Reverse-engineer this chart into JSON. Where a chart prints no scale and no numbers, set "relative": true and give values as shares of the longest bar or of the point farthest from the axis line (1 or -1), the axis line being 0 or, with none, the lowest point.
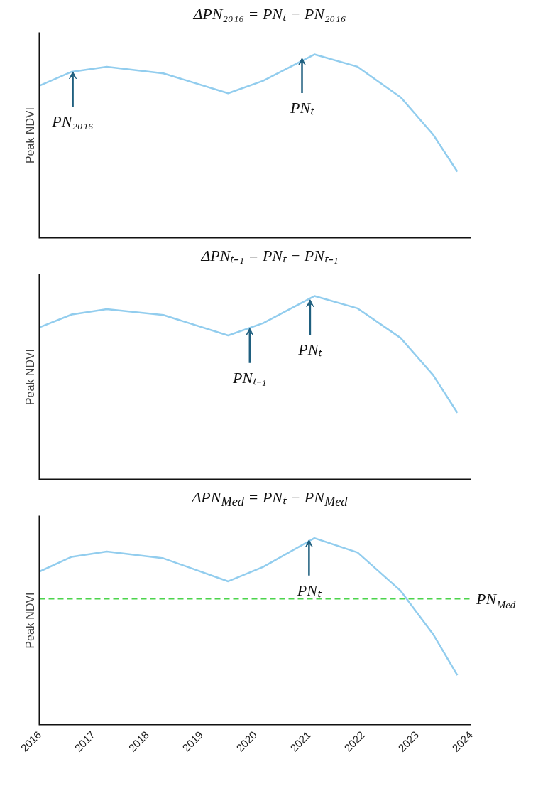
{
  "chart_data": [
    {
      "type": "line",
      "title": "ΔPN₂₀₁₆ = PNₜ − PN₂₀₁₆",
      "ylabel": "Peak NDVI",
      "relative": true,
      "xlim": [
        2016,
        2024
      ],
      "tick_labels": false,
      "grid": false,
      "marker": "none",
      "line_style": "solid",
      "x": [
        2016,
        2016.6,
        2017.25,
        2018.3,
        2019.5,
        2020.15,
        2021.1,
        2021.9,
        2022.7,
        2023.3,
        2023.75
      ],
      "series": [
        {
          "color": "#92cdee",
          "values": [
            0.83,
            0.906,
            0.933,
            0.897,
            0.789,
            0.857,
            1,
            0.933,
            0.767,
            0.565,
            0.363
          ]
        }
      ],
      "annotations": [
        {
          "text": "PN₂₀₁₆",
          "x": 2016.62,
          "y": 0.906
        },
        {
          "text": "PNₜ",
          "x": 2020.87,
          "y": 0.98
        }
      ]
    },
    {
      "type": "line",
      "title": "ΔPNₜ₋₁ = PNₜ − PNₜ₋₁",
      "ylabel": "Peak NDVI",
      "relative": true,
      "xlim": [
        2016,
        2024
      ],
      "tick_labels": false,
      "grid": false,
      "marker": "none",
      "line_style": "solid",
      "x": [
        2016,
        2016.6,
        2017.25,
        2018.3,
        2019.5,
        2020.15,
        2021.1,
        2021.9,
        2022.7,
        2023.3,
        2023.75
      ],
      "series": [
        {
          "color": "#92cdee",
          "values": [
            0.83,
            0.9,
            0.929,
            0.897,
            0.786,
            0.853,
            1,
            0.933,
            0.772,
            0.571,
            0.366
          ]
        }
      ],
      "annotations": [
        {
          "text": "PNₜ₋₁",
          "x": 2019.9,
          "y": 0.826
        },
        {
          "text": "PNₜ",
          "x": 2021.02,
          "y": 0.98
        }
      ]
    },
    {
      "type": "line",
      "title": "ΔPN$_{Med}$ = PNₜ − PN$_{Med}$",
      "ylabel": "Peak NDVI",
      "relative": true,
      "xlim": [
        2016,
        2024
      ],
      "xticks": [
        2016,
        2017,
        2018,
        2019,
        2020,
        2021,
        2022,
        2023,
        2024
      ],
      "tick_labels": "x",
      "grid": false,
      "marker": "none",
      "line_style": "solid",
      "x": [
        2016,
        2016.6,
        2017.25,
        2018.3,
        2019.5,
        2020.15,
        2021.1,
        2021.9,
        2022.7,
        2023.3,
        2023.75
      ],
      "series": [
        {
          "color": "#92cdee",
          "values": [
            0.821,
            0.9,
            0.928,
            0.892,
            0.769,
            0.846,
            1,
            0.923,
            0.718,
            0.487,
            0.267
          ]
        }
      ],
      "ref_lines": [
        {
          "axis": "y",
          "value": 0.677,
          "label": "PN$_{Med}$",
          "color": "#4cd44c",
          "line_style": "dashed"
        }
      ],
      "annotations": [
        {
          "text": "PNₜ",
          "x": 2021.0,
          "y": 0.99
        }
      ]
    }
  ]
}
